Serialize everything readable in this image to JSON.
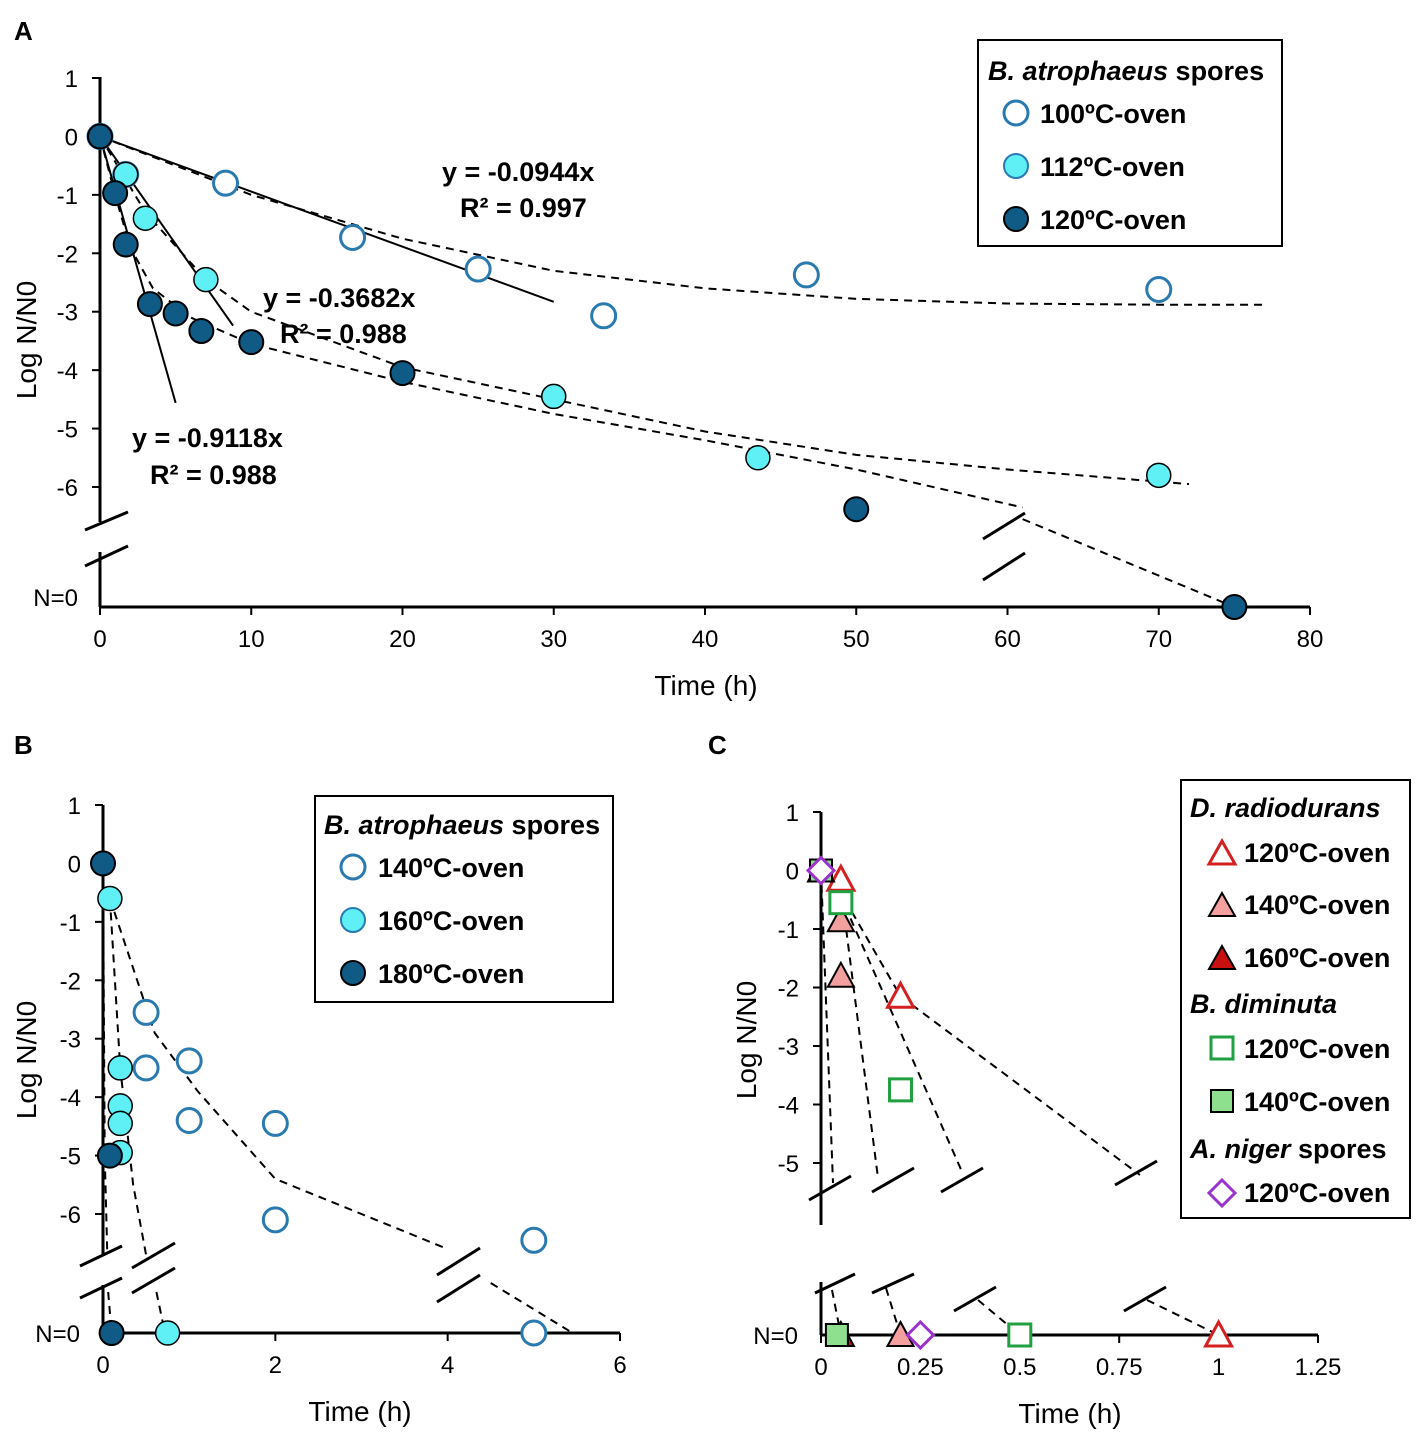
{
  "panels": [
    {
      "label": "A",
      "xlabel": "Time (h)",
      "ylabel": "Log N/N0",
      "break_label": "N=0",
      "x_ticks": [
        "0",
        "10",
        "20",
        "30",
        "40",
        "50",
        "60",
        "70",
        "80"
      ],
      "y_ticks": [
        "1",
        "0",
        "-1",
        "-2",
        "-3",
        "-4",
        "-5",
        "-6"
      ],
      "legend": {
        "title_italic": "B. atrophaeus",
        "title_rest": " spores",
        "items": [
          "100ºC-oven",
          "112ºC-oven",
          "120ºC-oven"
        ]
      },
      "equations": [
        {
          "eq": "y = -0.0944x",
          "r2": "R² = 0.997"
        },
        {
          "eq": "y = -0.3682x",
          "r2": "R² = 0.988"
        },
        {
          "eq": "y = -0.9118x",
          "r2": "R² = 0.988"
        }
      ]
    },
    {
      "label": "B",
      "xlabel": "Time (h)",
      "ylabel": "Log N/N0",
      "break_label": "N=0",
      "x_ticks": [
        "0",
        "2",
        "4",
        "6"
      ],
      "y_ticks": [
        "1",
        "0",
        "-1",
        "-2",
        "-3",
        "-4",
        "-5",
        "-6"
      ],
      "legend": {
        "title_italic": "B. atrophaeus",
        "title_rest": " spores",
        "items": [
          "140ºC-oven",
          "160ºC-oven",
          "180ºC-oven"
        ]
      }
    },
    {
      "label": "C",
      "xlabel": "Time (h)",
      "ylabel": "Log N/N0",
      "break_label": "N=0",
      "x_ticks": [
        "0",
        "0.25",
        "0.5",
        "0.75",
        "1",
        "1.25"
      ],
      "y_ticks": [
        "1",
        "0",
        "-1",
        "-2",
        "-3",
        "-4",
        "-5"
      ],
      "legend": {
        "groups": [
          {
            "title_italic": "D. radiodurans",
            "title_rest": "",
            "items": [
              "120ºC-oven",
              "140ºC-oven",
              "160ºC-oven"
            ]
          },
          {
            "title_italic": "B. diminuta",
            "title_rest": "",
            "items": [
              "120ºC-oven",
              "140ºC-oven"
            ]
          },
          {
            "title_italic": "A. niger",
            "title_rest": " spores",
            "items": [
              "120ºC-oven"
            ]
          }
        ]
      }
    }
  ],
  "colors": {
    "open_blue": "#2a7ab0",
    "light_cyan": "#5ff0f5",
    "dark_blue": "#105a86",
    "red": "#d42020",
    "pink": "#f5a0a0",
    "dark_red": "#c81010",
    "green": "#20a040",
    "light_green": "#8ee08e",
    "purple": "#9a32cd"
  },
  "chart_data": [
    {
      "type": "scatter",
      "title": "A",
      "xlabel": "Time (h)",
      "ylabel": "Log N/N0",
      "xlim": [
        0,
        80
      ],
      "ylim": [
        -6,
        1
      ],
      "series": [
        {
          "name": "100ºC-oven",
          "x": [
            0,
            1.7,
            8.3,
            16.7,
            25,
            33.3,
            46.7,
            70
          ],
          "y": [
            0,
            -0.65,
            -0.8,
            -1.73,
            -2.27,
            -3.07,
            -2.37,
            -2.62
          ]
        },
        {
          "name": "112ºC-oven",
          "x": [
            0,
            1.7,
            3,
            7,
            30,
            43.5,
            70
          ],
          "y": [
            0,
            -0.65,
            -1.4,
            -2.45,
            -4.45,
            -5.5,
            -5.8
          ]
        },
        {
          "name": "120ºC-oven",
          "x": [
            0,
            1,
            1.7,
            3.3,
            5,
            6.7,
            10,
            20,
            50,
            75
          ],
          "y": [
            0,
            -0.97,
            -1.85,
            -2.87,
            -3.03,
            -3.33,
            -3.52,
            -4.05,
            -6.38,
            "N=0"
          ]
        }
      ],
      "fits": [
        {
          "equation": "y = -0.0944x",
          "r2": 0.997
        },
        {
          "equation": "y = -0.3682x",
          "r2": 0.988
        },
        {
          "equation": "y = -0.9118x",
          "r2": 0.988
        }
      ]
    },
    {
      "type": "scatter",
      "title": "B",
      "xlabel": "Time (h)",
      "ylabel": "Log N/N0",
      "xlim": [
        0,
        6
      ],
      "ylim": [
        -6,
        1
      ],
      "series": [
        {
          "name": "140ºC-oven",
          "x": [
            0.5,
            0.5,
            1,
            1,
            2,
            2,
            5,
            5
          ],
          "y": [
            -2.55,
            -3.5,
            -3.38,
            -4.4,
            -4.45,
            -6.1,
            -6.45,
            "N=0"
          ]
        },
        {
          "name": "160ºC-oven",
          "x": [
            0.08,
            0.2,
            0.2,
            0.2,
            0.2,
            0.75
          ],
          "y": [
            -0.6,
            -3.5,
            -4.15,
            -4.45,
            -4.95,
            "N=0"
          ]
        },
        {
          "name": "180ºC-oven",
          "x": [
            0,
            0.08,
            0.1
          ],
          "y": [
            0,
            -5,
            "N=0"
          ]
        }
      ]
    },
    {
      "type": "scatter",
      "title": "C",
      "xlabel": "Time (h)",
      "ylabel": "Log N/N0",
      "xlim": [
        0,
        1.25
      ],
      "ylim": [
        -5,
        1
      ],
      "series": [
        {
          "name": "D. radiodurans 120ºC-oven",
          "x": [
            0.05,
            0.2,
            1
          ],
          "y": [
            -0.15,
            -2.15,
            "N=0"
          ]
        },
        {
          "name": "D. radiodurans 140ºC-oven",
          "x": [
            0.05,
            0.05,
            0.2
          ],
          "y": [
            -0.85,
            -1.8,
            "N=0"
          ]
        },
        {
          "name": "D. radiodurans 160ºC-oven",
          "x": [
            0,
            0.05
          ],
          "y": [
            0,
            "N=0"
          ]
        },
        {
          "name": "B. diminuta 120ºC-oven",
          "x": [
            0.05,
            0.2,
            0.5
          ],
          "y": [
            -0.55,
            -3.75,
            "N=0"
          ]
        },
        {
          "name": "B. diminuta 140ºC-oven",
          "x": [
            0,
            0.04
          ],
          "y": [
            0,
            "N=0"
          ]
        },
        {
          "name": "A. niger spores 120ºC-oven",
          "x": [
            0,
            0.25
          ],
          "y": [
            0,
            "N=0"
          ]
        }
      ]
    }
  ]
}
